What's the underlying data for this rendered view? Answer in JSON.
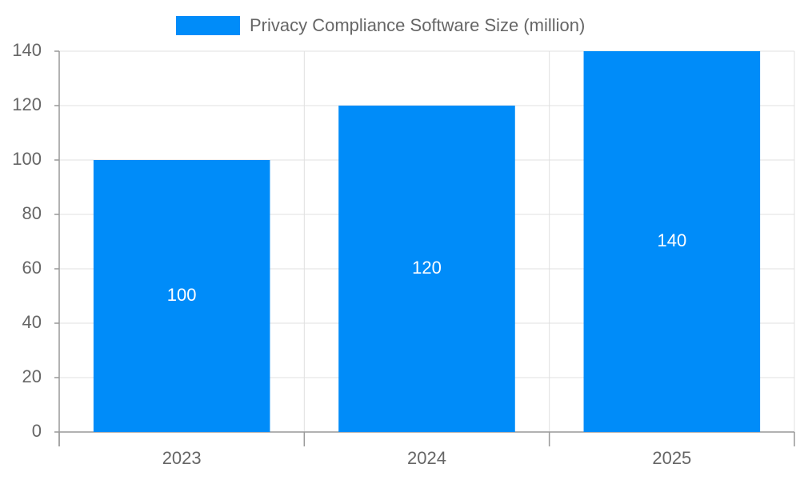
{
  "chart_data": {
    "type": "bar",
    "categories": [
      "2023",
      "2024",
      "2025"
    ],
    "series": [
      {
        "name": "Privacy Compliance Software Size (million)",
        "color": "#008cf9",
        "values": [
          100,
          120,
          140
        ]
      }
    ],
    "ylim": [
      0,
      140
    ],
    "yticks": [
      0,
      20,
      40,
      60,
      80,
      100,
      120,
      140
    ],
    "grid": true
  }
}
